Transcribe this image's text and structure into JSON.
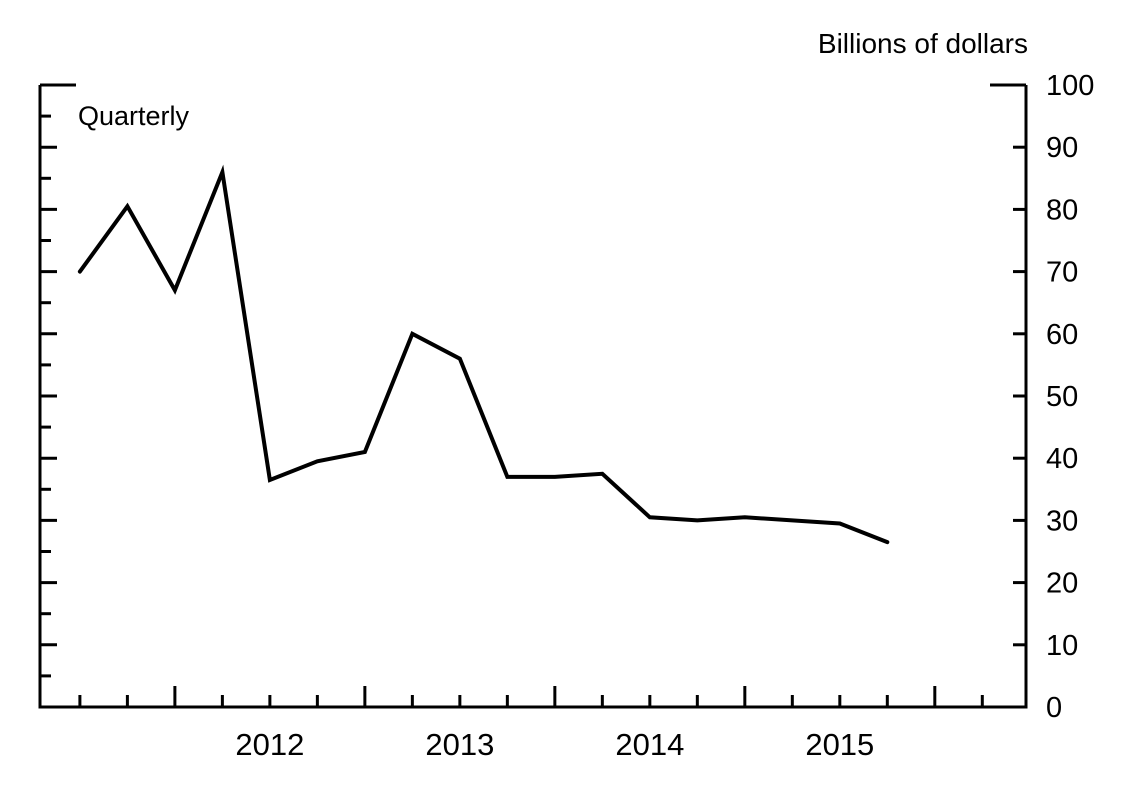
{
  "chart": {
    "unit_label": "Billions of dollars",
    "frequency_label": "Quarterly"
  },
  "chart_data": {
    "type": "line",
    "title": "",
    "subtitle": "Quarterly",
    "ylabel": "Billions of dollars",
    "xlabel": "",
    "legend_position": "none",
    "grid": false,
    "line_color": "#000000",
    "background_color": "#ffffff",
    "ylim": [
      0,
      100
    ],
    "y_ticks": [
      0,
      10,
      20,
      30,
      40,
      50,
      60,
      70,
      80,
      90,
      100
    ],
    "y_minor_tick_step": 5,
    "xlim_years": [
      2011.29,
      2016.48
    ],
    "x_year_labels": [
      2012,
      2013,
      2014,
      2015
    ],
    "categories": [
      "2011 Q3",
      "2011 Q4",
      "2012 Q1",
      "2012 Q2",
      "2012 Q3",
      "2012 Q4",
      "2013 Q1",
      "2013 Q2",
      "2013 Q3",
      "2013 Q4",
      "2014 Q1",
      "2014 Q2",
      "2014 Q3",
      "2014 Q4",
      "2015 Q1",
      "2015 Q2",
      "2015 Q3",
      "2015 Q4"
    ],
    "x_years": [
      2011.5,
      2011.75,
      2012.0,
      2012.25,
      2012.5,
      2012.75,
      2013.0,
      2013.25,
      2013.5,
      2013.75,
      2014.0,
      2014.25,
      2014.5,
      2014.75,
      2015.0,
      2015.25,
      2015.5,
      2015.75
    ],
    "series": [
      {
        "name": "Billions of dollars (quarterly)",
        "values": [
          70,
          80.5,
          67,
          86,
          36.5,
          39.5,
          41,
          60,
          56,
          37,
          37,
          37.5,
          30.5,
          30,
          30.5,
          30,
          29.5,
          26.5
        ]
      }
    ]
  }
}
